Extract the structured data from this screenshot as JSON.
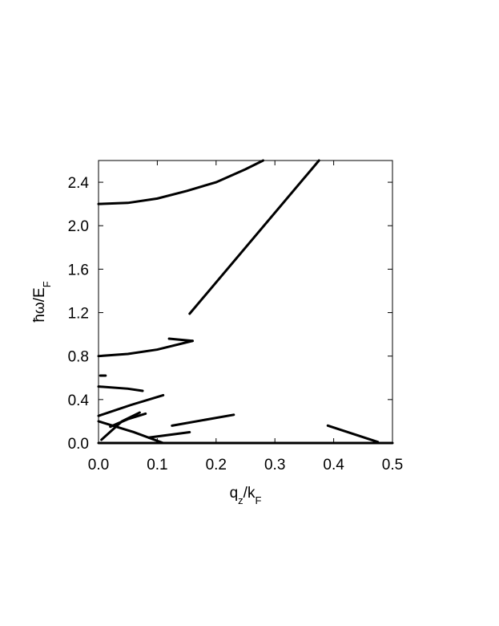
{
  "chart_data": {
    "type": "line",
    "xlabel": [
      "q",
      "z",
      "/k",
      "F"
    ],
    "ylabel": [
      "ħω/E",
      "F"
    ],
    "xlim": [
      0,
      0.5
    ],
    "ylim": [
      0,
      2.6
    ],
    "xticks": [
      {
        "value": 0,
        "label": "0.0"
      },
      0.1,
      0.2,
      0.3,
      0.4,
      0.5
    ],
    "yticks": [
      {
        "value": 0,
        "label": "0.0"
      },
      0.4,
      0.8,
      1.2,
      1.6,
      {
        "value": 2,
        "label": "2.0"
      },
      2.4
    ],
    "series": [
      {
        "color": "#000000",
        "x": [
          0,
          0.05,
          0.1,
          0.15,
          0.2,
          0.25,
          0.28
        ],
        "values": [
          2.2,
          2.21,
          2.25,
          2.32,
          2.4,
          2.52,
          2.6
        ]
      },
      {
        "color": "#000000",
        "x": [
          0.155,
          0.375
        ],
        "values": [
          1.19,
          2.6
        ]
      },
      {
        "color": "#000000",
        "x": [
          0,
          0.05,
          0.1,
          0.16
        ],
        "values": [
          0.8,
          0.82,
          0.86,
          0.94
        ]
      },
      {
        "color": "#000000",
        "x": [
          0.12,
          0.16
        ],
        "values": [
          0.96,
          0.94
        ]
      },
      {
        "color": "#000000",
        "x": [
          0.003,
          0.012
        ],
        "values": [
          0.62,
          0.62
        ]
      },
      {
        "color": "#000000",
        "x": [
          0,
          0.05,
          0.075
        ],
        "values": [
          0.52,
          0.5,
          0.48
        ]
      },
      {
        "color": "#000000",
        "x": [
          0,
          0.055,
          0.11
        ],
        "values": [
          0.25,
          0.35,
          0.44
        ]
      },
      {
        "color": "#000000",
        "x": [
          0,
          0.06,
          0.11
        ],
        "values": [
          0.2,
          0.1,
          0
        ]
      },
      {
        "color": "#000000",
        "x": [
          0.005,
          0.04,
          0.07
        ],
        "values": [
          0.03,
          0.2,
          0.28
        ]
      },
      {
        "color": "#000000",
        "x": [
          0.02,
          0.05,
          0.08
        ],
        "values": [
          0.15,
          0.22,
          0.27
        ]
      },
      {
        "color": "#000000",
        "x": [
          0.125,
          0.23
        ],
        "values": [
          0.16,
          0.26
        ]
      },
      {
        "color": "#000000",
        "x": [
          0.085,
          0.155
        ],
        "values": [
          0.05,
          0.1
        ]
      },
      {
        "color": "#000000",
        "x": [
          0.39,
          0.475
        ],
        "values": [
          0.16,
          0.01
        ]
      },
      {
        "color": "#000000",
        "x": [
          0,
          0.5
        ],
        "values": [
          0,
          0
        ]
      }
    ]
  }
}
